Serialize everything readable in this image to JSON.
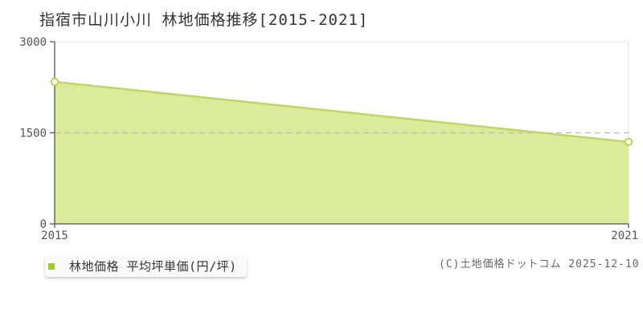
{
  "title": "指宿市山川小川 林地価格推移[2015-2021]",
  "legend": {
    "label": "林地価格 平均坪単価(円/坪)",
    "marker_color": "#a3cc2a"
  },
  "copyright": "(C)土地価格ドットコム 2025-12-10",
  "chart_data": {
    "type": "area",
    "title": "指宿市山川小川 林地価格推移[2015-2021]",
    "x": [
      2015,
      2021
    ],
    "series": [
      {
        "name": "林地価格 平均坪単価(円/坪)",
        "values": [
          2340,
          1350
        ]
      }
    ],
    "xlabel": "",
    "ylabel": "平均坪単価(円/坪)",
    "ylim": [
      0,
      3000
    ],
    "yticks": [
      0,
      1500,
      3000
    ],
    "xticks": [
      2015,
      2021
    ],
    "grid": {
      "mid_line_style": "dashed",
      "top_line_style": "solid-light",
      "right_border": true
    },
    "legend_position": "bottom-left",
    "colors": {
      "line": "#c0d75e",
      "fill": "#dcea9c",
      "marker_fill": "#ffffff",
      "marker_stroke": "#b9d44b",
      "axis": "#545454",
      "grid_dashed": "#bbbbbb",
      "grid_light": "#e8e8e8",
      "right_border": "#e0e0e0",
      "tick_text": "#545454"
    }
  }
}
